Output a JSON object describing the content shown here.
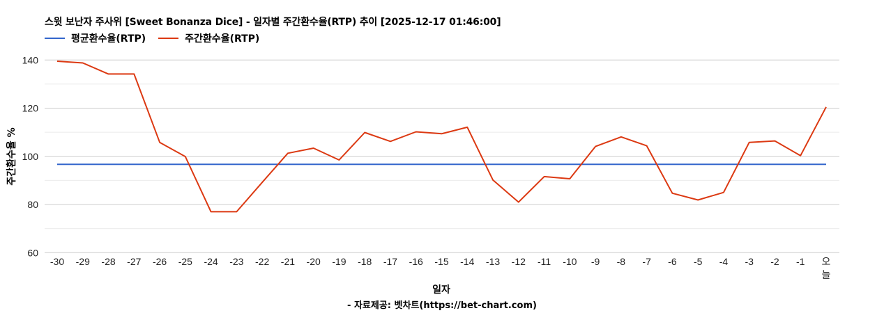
{
  "title": "스윗 보난자 주사위 [Sweet Bonanza Dice] - 일자별 주간환수율(RTP) 추이 [2025-12-17 01:46:00]",
  "legend": [
    {
      "label": "평균환수율(RTP)",
      "color": "#3366cc"
    },
    {
      "label": "주간환수율(RTP)",
      "color": "#dc3912"
    }
  ],
  "source": "- 자료제공: 벳차트(https://bet-chart.com)",
  "chart_data": {
    "type": "line",
    "title": "스윗 보난자 주사위 [Sweet Bonanza Dice] - 일자별 주간환수율(RTP) 추이 [2025-12-17 01:46:00]",
    "xlabel": "일자",
    "ylabel": "주간환수율 %",
    "ylim": [
      60,
      140
    ],
    "yticks": [
      60,
      80,
      100,
      120,
      140
    ],
    "minor_gridlines": [
      70,
      90,
      110,
      130
    ],
    "grid": true,
    "legend_position": "top",
    "categories": [
      "-30",
      "-29",
      "-28",
      "-27",
      "-26",
      "-25",
      "-24",
      "-23",
      "-22",
      "-21",
      "-20",
      "-19",
      "-18",
      "-17",
      "-16",
      "-15",
      "-14",
      "-13",
      "-12",
      "-11",
      "-10",
      "-9",
      "-8",
      "-7",
      "-6",
      "-5",
      "-4",
      "-3",
      "-2",
      "-1",
      "오늘"
    ],
    "series": [
      {
        "name": "평균환수율(RTP)",
        "color": "#3366cc",
        "values": [
          96.7,
          96.7,
          96.7,
          96.7,
          96.7,
          96.7,
          96.7,
          96.7,
          96.7,
          96.7,
          96.7,
          96.7,
          96.7,
          96.7,
          96.7,
          96.7,
          96.7,
          96.7,
          96.7,
          96.7,
          96.7,
          96.7,
          96.7,
          96.7,
          96.7,
          96.7,
          96.7,
          96.7,
          96.7,
          96.7,
          96.7
        ]
      },
      {
        "name": "주간환수율(RTP)",
        "color": "#dc3912",
        "values": [
          139.5,
          138.8,
          134.2,
          134.2,
          105.8,
          99.9,
          77.0,
          77.0,
          89.2,
          101.3,
          103.4,
          98.5,
          109.9,
          106.2,
          110.2,
          109.4,
          112.1,
          90.2,
          81.0,
          91.6,
          90.7,
          104.1,
          108.1,
          104.4,
          84.7,
          81.9,
          85.0,
          105.8,
          106.4,
          100.3,
          120.5
        ]
      }
    ]
  }
}
